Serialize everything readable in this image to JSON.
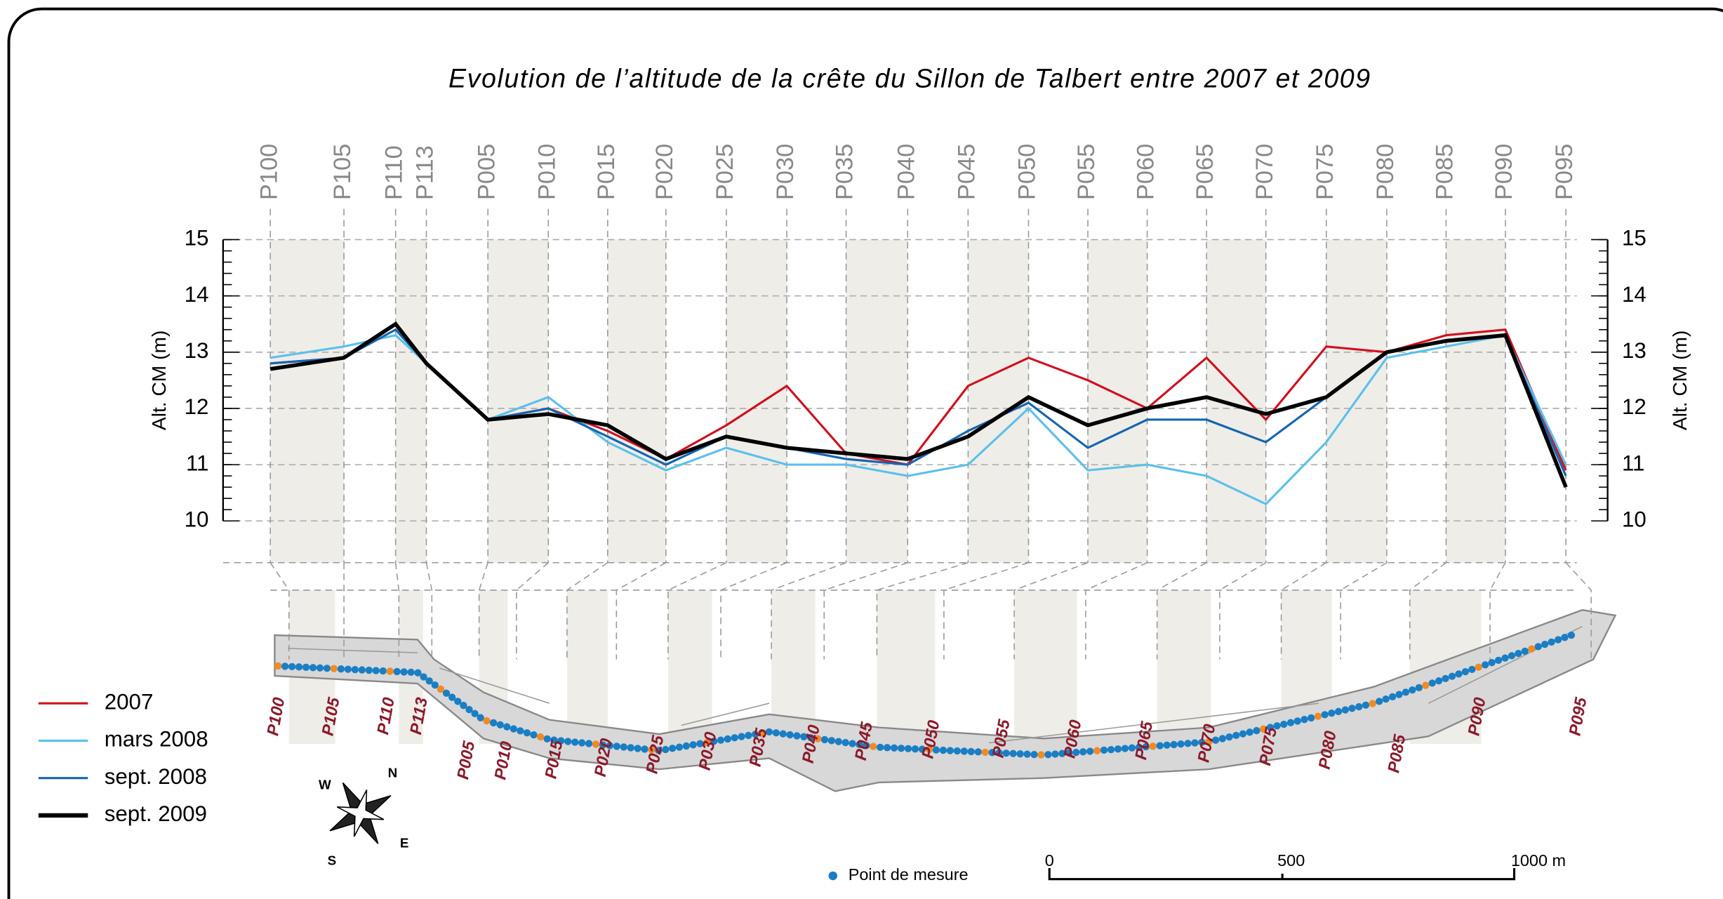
{
  "chart_data": {
    "type": "line",
    "title": "Evolution de l’altitude de la crête du Sillon de Talbert entre 2007 et 2009",
    "y_label": "Alt. CM (m)",
    "y2_label": "Alt. CM (m)",
    "categories": [
      "P100",
      "P105",
      "P110",
      "P113",
      "P005",
      "P010",
      "P015",
      "P020",
      "P025",
      "P030",
      "P035",
      "P040",
      "P045",
      "P050",
      "P055",
      "P060",
      "P065",
      "P070",
      "P075",
      "P080",
      "P085",
      "P090",
      "P095"
    ],
    "series": [
      {
        "name": "2007",
        "color": "#d0101e",
        "values": [
          12.8,
          12.9,
          13.5,
          12.8,
          11.8,
          12.0,
          11.6,
          11.1,
          11.7,
          12.4,
          11.2,
          11.0,
          12.4,
          12.9,
          12.5,
          12.0,
          12.9,
          11.8,
          13.1,
          13.0,
          13.3,
          13.4,
          10.9
        ]
      },
      {
        "name": "mars 2008",
        "color": "#5bc0eb",
        "values": [
          12.9,
          13.1,
          13.3,
          12.8,
          11.8,
          12.2,
          11.4,
          10.9,
          11.3,
          11.0,
          11.0,
          10.8,
          11.0,
          12.0,
          10.9,
          11.0,
          10.8,
          10.3,
          11.4,
          12.9,
          13.1,
          13.3,
          11.0
        ]
      },
      {
        "name": "sept. 2008",
        "color": "#1565b0",
        "values": [
          12.8,
          12.9,
          13.4,
          12.8,
          11.8,
          12.0,
          11.5,
          11.0,
          11.5,
          11.3,
          11.1,
          11.0,
          11.6,
          12.1,
          11.3,
          11.8,
          11.8,
          11.4,
          12.2,
          13.0,
          13.2,
          13.3,
          10.8
        ]
      },
      {
        "name": "sept. 2009",
        "color": "#000000",
        "values": [
          12.7,
          12.9,
          13.5,
          12.8,
          11.8,
          11.9,
          11.7,
          11.1,
          11.5,
          11.3,
          11.2,
          11.1,
          11.5,
          12.2,
          11.7,
          12.0,
          12.2,
          11.9,
          12.2,
          13.0,
          13.2,
          13.3,
          10.6
        ]
      }
    ],
    "ylim": [
      10,
      15
    ],
    "yticks": [
      10,
      11,
      12,
      13,
      14,
      15
    ],
    "y2lim": [
      10,
      15
    ],
    "y2ticks": [
      10,
      11,
      12,
      13,
      14,
      15
    ],
    "grid": true
  },
  "map": {
    "point_legend": "Point de mesure",
    "scale_labels": [
      "0",
      "500",
      "1000 m"
    ],
    "compass": [
      "W",
      "N",
      "S",
      "E"
    ]
  }
}
